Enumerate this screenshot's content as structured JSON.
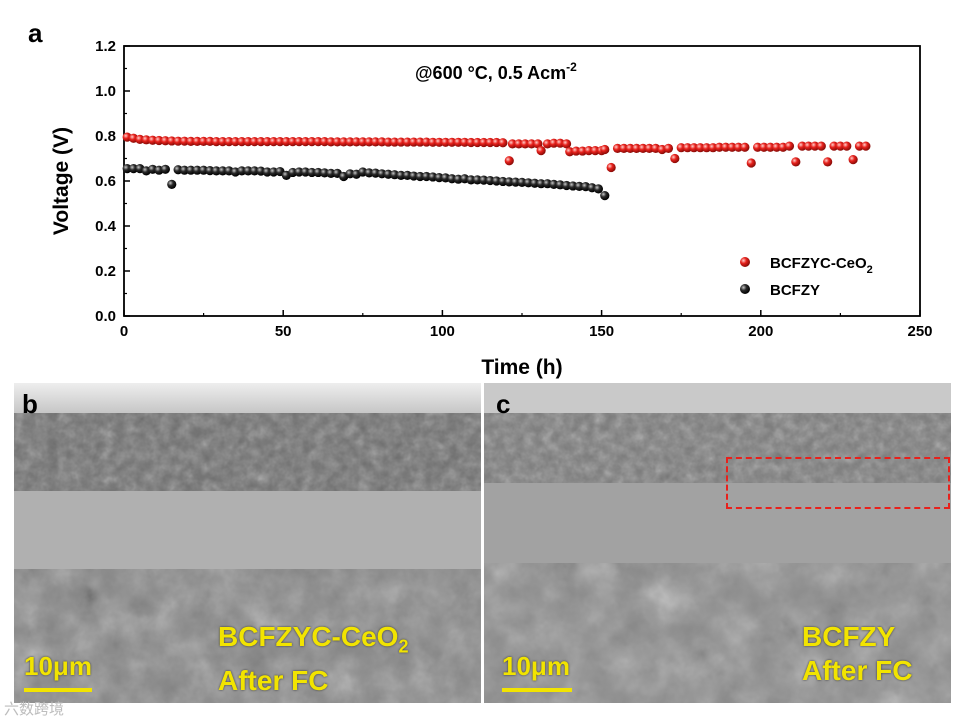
{
  "panel_a": {
    "letter": "a",
    "annotation": "@600 °C, 0.5 Acm",
    "annotation_sup": "-2"
  },
  "panel_b": {
    "letter": "b",
    "label_line1": "BCFZYC-CeO",
    "label_sub": "2",
    "label_line2": "After FC",
    "scale_label": "10μm"
  },
  "panel_c": {
    "letter": "c",
    "label_line1": "BCFZY",
    "label_line2": "After FC",
    "scale_label": "10μm"
  },
  "watermark": "六数跨境",
  "chart_data": {
    "type": "scatter",
    "xlabel": "Time (h)",
    "ylabel": "Voltage (V)",
    "xlim": [
      0,
      250
    ],
    "ylim": [
      0.0,
      1.2
    ],
    "xticks": [
      "0",
      "50",
      "100",
      "150",
      "200",
      "250"
    ],
    "yticks": [
      "0.0",
      "0.2",
      "0.4",
      "0.6",
      "0.8",
      "1.0",
      "1.2"
    ],
    "legend_position": "bottom-right",
    "grid": false,
    "series": [
      {
        "name": "BCFZYC-CeO2",
        "legend_main": "BCFZYC-CeO",
        "legend_sub": "2",
        "color": "#e8211c",
        "x": [
          1,
          3,
          5,
          7,
          9,
          11,
          13,
          15,
          17,
          19,
          21,
          23,
          25,
          27,
          29,
          31,
          33,
          35,
          37,
          39,
          41,
          43,
          45,
          47,
          49,
          51,
          53,
          55,
          57,
          59,
          61,
          63,
          65,
          67,
          69,
          71,
          73,
          75,
          77,
          79,
          81,
          83,
          85,
          87,
          89,
          91,
          93,
          95,
          97,
          99,
          101,
          103,
          105,
          107,
          109,
          111,
          113,
          115,
          117,
          119,
          121,
          122,
          124,
          126,
          128,
          130,
          131,
          133,
          135,
          137,
          139,
          140,
          142,
          144,
          146,
          148,
          150,
          151,
          153,
          155,
          157,
          159,
          161,
          163,
          165,
          167,
          169,
          171,
          173,
          175,
          177,
          179,
          181,
          183,
          185,
          187,
          189,
          191,
          193,
          195,
          197,
          199,
          201,
          203,
          205,
          207,
          209,
          211,
          213,
          215,
          217,
          219,
          221,
          223,
          225,
          227,
          229,
          231,
          233
        ],
        "y": [
          0.795,
          0.79,
          0.785,
          0.783,
          0.781,
          0.78,
          0.779,
          0.778,
          0.777,
          0.777,
          0.776,
          0.776,
          0.776,
          0.776,
          0.775,
          0.775,
          0.775,
          0.775,
          0.775,
          0.775,
          0.775,
          0.775,
          0.775,
          0.775,
          0.775,
          0.775,
          0.775,
          0.775,
          0.775,
          0.775,
          0.775,
          0.775,
          0.774,
          0.774,
          0.774,
          0.774,
          0.774,
          0.774,
          0.774,
          0.774,
          0.774,
          0.773,
          0.773,
          0.773,
          0.773,
          0.773,
          0.773,
          0.773,
          0.772,
          0.772,
          0.772,
          0.772,
          0.772,
          0.772,
          0.771,
          0.771,
          0.771,
          0.771,
          0.771,
          0.77,
          0.69,
          0.765,
          0.765,
          0.765,
          0.765,
          0.765,
          0.735,
          0.765,
          0.768,
          0.768,
          0.765,
          0.73,
          0.733,
          0.733,
          0.735,
          0.735,
          0.735,
          0.74,
          0.66,
          0.745,
          0.745,
          0.745,
          0.745,
          0.745,
          0.745,
          0.745,
          0.74,
          0.745,
          0.7,
          0.748,
          0.748,
          0.748,
          0.748,
          0.748,
          0.748,
          0.75,
          0.75,
          0.75,
          0.75,
          0.75,
          0.68,
          0.75,
          0.75,
          0.75,
          0.75,
          0.75,
          0.755,
          0.685,
          0.755,
          0.755,
          0.755,
          0.755,
          0.685,
          0.755,
          0.755,
          0.755,
          0.695,
          0.755,
          0.755
        ]
      },
      {
        "name": "BCFZY",
        "color": "#1a1a1a",
        "x": [
          1,
          3,
          5,
          7,
          9,
          11,
          13,
          15,
          17,
          19,
          21,
          23,
          25,
          27,
          29,
          31,
          33,
          35,
          37,
          39,
          41,
          43,
          45,
          47,
          49,
          51,
          53,
          55,
          57,
          59,
          61,
          63,
          65,
          67,
          69,
          71,
          73,
          75,
          77,
          79,
          81,
          83,
          85,
          87,
          89,
          91,
          93,
          95,
          97,
          99,
          101,
          103,
          105,
          107,
          109,
          111,
          113,
          115,
          117,
          119,
          121,
          123,
          125,
          127,
          129,
          131,
          133,
          135,
          137,
          139,
          141,
          143,
          145,
          147,
          149,
          151
        ],
        "y": [
          0.655,
          0.655,
          0.655,
          0.645,
          0.652,
          0.648,
          0.652,
          0.585,
          0.65,
          0.648,
          0.648,
          0.648,
          0.648,
          0.646,
          0.645,
          0.645,
          0.645,
          0.64,
          0.645,
          0.645,
          0.645,
          0.644,
          0.64,
          0.64,
          0.642,
          0.625,
          0.638,
          0.64,
          0.64,
          0.638,
          0.638,
          0.636,
          0.634,
          0.634,
          0.62,
          0.632,
          0.63,
          0.64,
          0.636,
          0.635,
          0.632,
          0.63,
          0.628,
          0.625,
          0.625,
          0.622,
          0.62,
          0.62,
          0.618,
          0.615,
          0.614,
          0.61,
          0.608,
          0.61,
          0.605,
          0.605,
          0.604,
          0.602,
          0.6,
          0.598,
          0.596,
          0.595,
          0.594,
          0.592,
          0.59,
          0.588,
          0.588,
          0.585,
          0.583,
          0.58,
          0.578,
          0.576,
          0.575,
          0.57,
          0.565,
          0.535
        ]
      }
    ]
  }
}
